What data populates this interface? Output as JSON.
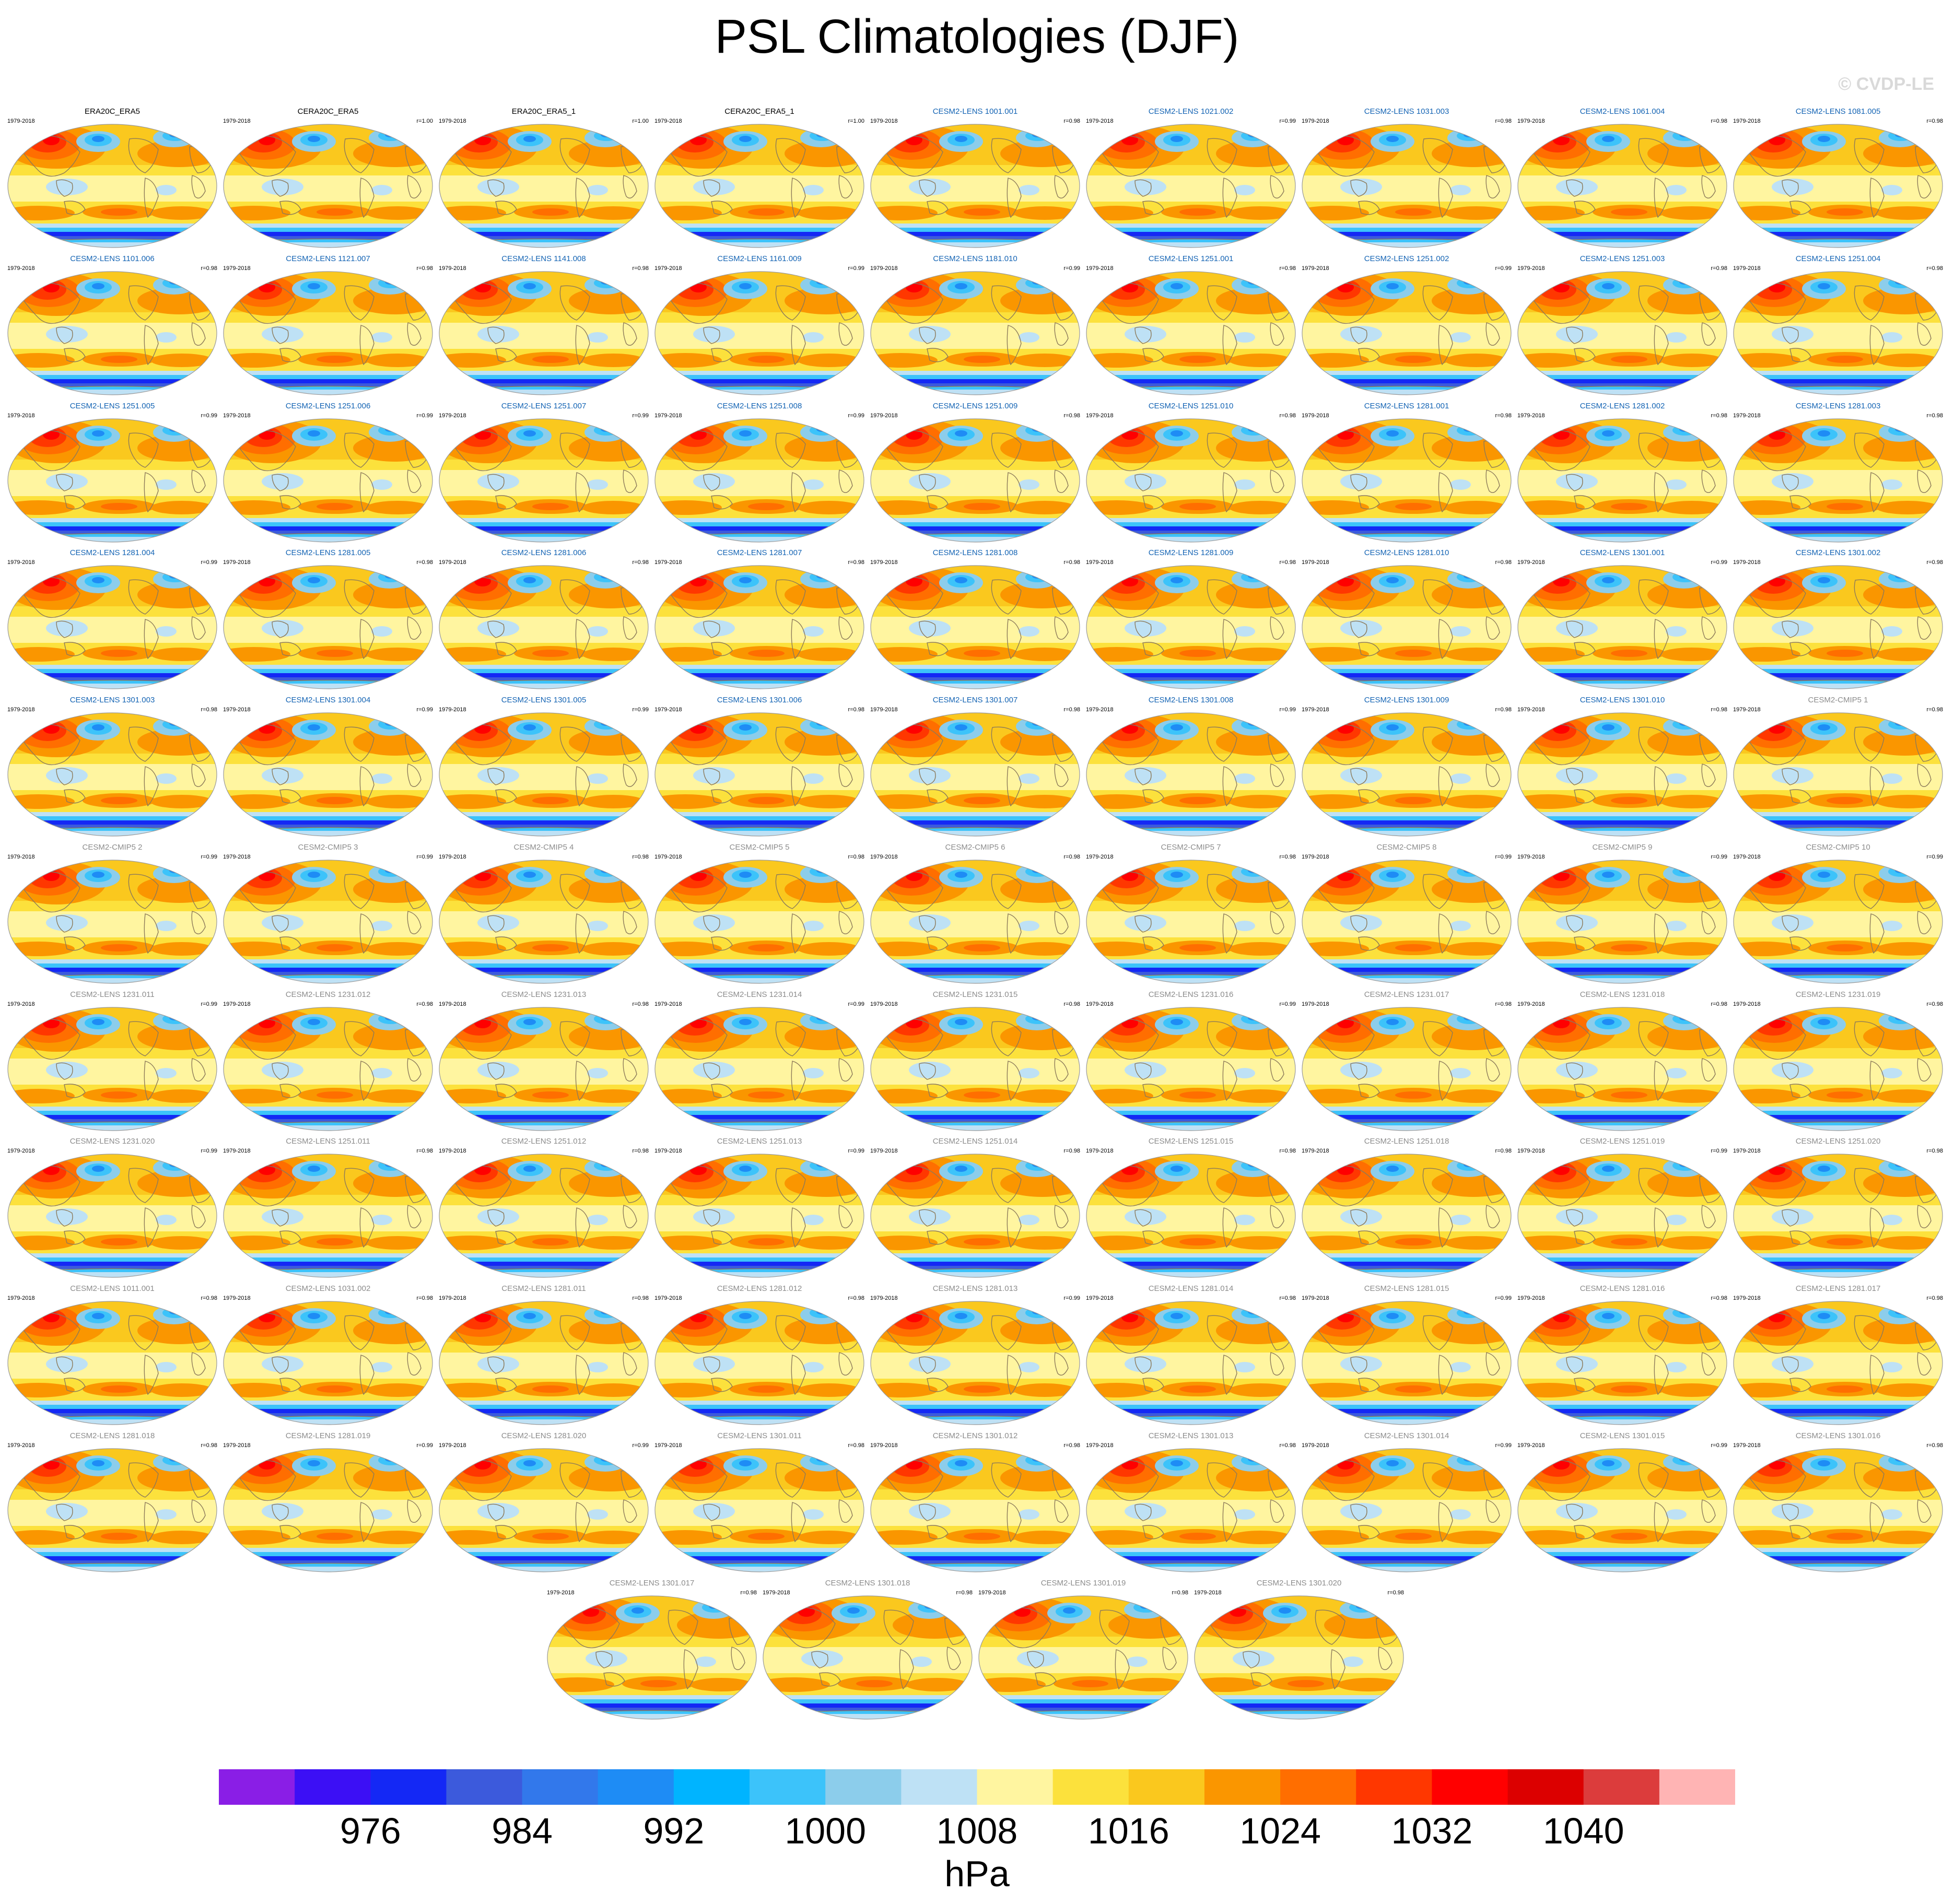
{
  "title": "PSL Climatologies (DJF)",
  "credit": "© CVDP-LE",
  "years": "1979-2018",
  "units": "hPa",
  "colorbar": {
    "tick_labels": [
      "976",
      "984",
      "992",
      "1000",
      "1008",
      "1016",
      "1024",
      "1032",
      "1040"
    ],
    "colors": [
      "#8a1ee6",
      "#3c0ff5",
      "#1428f5",
      "#3c5adc",
      "#3278eb",
      "#1e8cf5",
      "#00b4ff",
      "#3cc3fa",
      "#8ccdeb",
      "#bee1f5",
      "#fff5a0",
      "#fce13c",
      "#fac81e",
      "#fa9600",
      "#ff6e00",
      "#ff3700",
      "#ff0000",
      "#dc0000",
      "#dc3c3c",
      "#ffb4b4"
    ]
  },
  "panels": [
    {
      "name": "ERA20C_ERA5",
      "r": "",
      "kind": "obs"
    },
    {
      "name": "CERA20C_ERA5",
      "r": "r=1.00",
      "kind": "obs"
    },
    {
      "name": "ERA20C_ERA5_1",
      "r": "r=1.00",
      "kind": "obs"
    },
    {
      "name": "CERA20C_ERA5_1",
      "r": "r=1.00",
      "kind": "obs"
    },
    {
      "name": "CESM2-LENS 1001.001",
      "r": "r=0.98",
      "kind": "lens"
    },
    {
      "name": "CESM2-LENS 1021.002",
      "r": "r=0.99",
      "kind": "lens"
    },
    {
      "name": "CESM2-LENS 1031.003",
      "r": "r=0.98",
      "kind": "lens"
    },
    {
      "name": "CESM2-LENS 1061.004",
      "r": "r=0.98",
      "kind": "lens"
    },
    {
      "name": "CESM2-LENS 1081.005",
      "r": "r=0.98",
      "kind": "lens"
    },
    {
      "name": "CESM2-LENS 1101.006",
      "r": "r=0.98",
      "kind": "lens"
    },
    {
      "name": "CESM2-LENS 1121.007",
      "r": "r=0.98",
      "kind": "lens"
    },
    {
      "name": "CESM2-LENS 1141.008",
      "r": "r=0.98",
      "kind": "lens"
    },
    {
      "name": "CESM2-LENS 1161.009",
      "r": "r=0.99",
      "kind": "lens"
    },
    {
      "name": "CESM2-LENS 1181.010",
      "r": "r=0.99",
      "kind": "lens"
    },
    {
      "name": "CESM2-LENS 1251.001",
      "r": "r=0.98",
      "kind": "lens"
    },
    {
      "name": "CESM2-LENS 1251.002",
      "r": "r=0.99",
      "kind": "lens"
    },
    {
      "name": "CESM2-LENS 1251.003",
      "r": "r=0.98",
      "kind": "lens"
    },
    {
      "name": "CESM2-LENS 1251.004",
      "r": "r=0.98",
      "kind": "lens"
    },
    {
      "name": "CESM2-LENS 1251.005",
      "r": "r=0.99",
      "kind": "lens"
    },
    {
      "name": "CESM2-LENS 1251.006",
      "r": "r=0.99",
      "kind": "lens"
    },
    {
      "name": "CESM2-LENS 1251.007",
      "r": "r=0.99",
      "kind": "lens"
    },
    {
      "name": "CESM2-LENS 1251.008",
      "r": "r=0.99",
      "kind": "lens"
    },
    {
      "name": "CESM2-LENS 1251.009",
      "r": "r=0.98",
      "kind": "lens"
    },
    {
      "name": "CESM2-LENS 1251.010",
      "r": "r=0.98",
      "kind": "lens"
    },
    {
      "name": "CESM2-LENS 1281.001",
      "r": "r=0.98",
      "kind": "lens"
    },
    {
      "name": "CESM2-LENS 1281.002",
      "r": "r=0.98",
      "kind": "lens"
    },
    {
      "name": "CESM2-LENS 1281.003",
      "r": "r=0.98",
      "kind": "lens"
    },
    {
      "name": "CESM2-LENS 1281.004",
      "r": "r=0.99",
      "kind": "lens"
    },
    {
      "name": "CESM2-LENS 1281.005",
      "r": "r=0.98",
      "kind": "lens"
    },
    {
      "name": "CESM2-LENS 1281.006",
      "r": "r=0.98",
      "kind": "lens"
    },
    {
      "name": "CESM2-LENS 1281.007",
      "r": "r=0.98",
      "kind": "lens"
    },
    {
      "name": "CESM2-LENS 1281.008",
      "r": "r=0.98",
      "kind": "lens"
    },
    {
      "name": "CESM2-LENS 1281.009",
      "r": "r=0.98",
      "kind": "lens"
    },
    {
      "name": "CESM2-LENS 1281.010",
      "r": "r=0.98",
      "kind": "lens"
    },
    {
      "name": "CESM2-LENS 1301.001",
      "r": "r=0.99",
      "kind": "lens"
    },
    {
      "name": "CESM2-LENS 1301.002",
      "r": "r=0.98",
      "kind": "lens"
    },
    {
      "name": "CESM2-LENS 1301.003",
      "r": "r=0.98",
      "kind": "lens"
    },
    {
      "name": "CESM2-LENS 1301.004",
      "r": "r=0.99",
      "kind": "lens"
    },
    {
      "name": "CESM2-LENS 1301.005",
      "r": "r=0.99",
      "kind": "lens"
    },
    {
      "name": "CESM2-LENS 1301.006",
      "r": "r=0.98",
      "kind": "lens"
    },
    {
      "name": "CESM2-LENS 1301.007",
      "r": "r=0.98",
      "kind": "lens"
    },
    {
      "name": "CESM2-LENS 1301.008",
      "r": "r=0.99",
      "kind": "lens"
    },
    {
      "name": "CESM2-LENS 1301.009",
      "r": "r=0.98",
      "kind": "lens"
    },
    {
      "name": "CESM2-LENS 1301.010",
      "r": "r=0.98",
      "kind": "lens"
    },
    {
      "name": "CESM2-CMIP5 1",
      "r": "r=0.98",
      "kind": "cmip"
    },
    {
      "name": "CESM2-CMIP5 2",
      "r": "r=0.99",
      "kind": "cmip"
    },
    {
      "name": "CESM2-CMIP5 3",
      "r": "r=0.99",
      "kind": "cmip"
    },
    {
      "name": "CESM2-CMIP5 4",
      "r": "r=0.98",
      "kind": "cmip"
    },
    {
      "name": "CESM2-CMIP5 5",
      "r": "r=0.98",
      "kind": "cmip"
    },
    {
      "name": "CESM2-CMIP5 6",
      "r": "r=0.98",
      "kind": "cmip"
    },
    {
      "name": "CESM2-CMIP5 7",
      "r": "r=0.98",
      "kind": "cmip"
    },
    {
      "name": "CESM2-CMIP5 8",
      "r": "r=0.99",
      "kind": "cmip"
    },
    {
      "name": "CESM2-CMIP5 9",
      "r": "r=0.99",
      "kind": "cmip"
    },
    {
      "name": "CESM2-CMIP5 10",
      "r": "r=0.99",
      "kind": "cmip"
    },
    {
      "name": "CESM2-LENS 1231.011",
      "r": "r=0.99",
      "kind": "cmip"
    },
    {
      "name": "CESM2-LENS 1231.012",
      "r": "r=0.98",
      "kind": "cmip"
    },
    {
      "name": "CESM2-LENS 1231.013",
      "r": "r=0.98",
      "kind": "cmip"
    },
    {
      "name": "CESM2-LENS 1231.014",
      "r": "r=0.99",
      "kind": "cmip"
    },
    {
      "name": "CESM2-LENS 1231.015",
      "r": "r=0.98",
      "kind": "cmip"
    },
    {
      "name": "CESM2-LENS 1231.016",
      "r": "r=0.99",
      "kind": "cmip"
    },
    {
      "name": "CESM2-LENS 1231.017",
      "r": "r=0.98",
      "kind": "cmip"
    },
    {
      "name": "CESM2-LENS 1231.018",
      "r": "r=0.98",
      "kind": "cmip"
    },
    {
      "name": "CESM2-LENS 1231.019",
      "r": "r=0.98",
      "kind": "cmip"
    },
    {
      "name": "CESM2-LENS 1231.020",
      "r": "r=0.99",
      "kind": "cmip"
    },
    {
      "name": "CESM2-LENS 1251.011",
      "r": "r=0.98",
      "kind": "cmip"
    },
    {
      "name": "CESM2-LENS 1251.012",
      "r": "r=0.98",
      "kind": "cmip"
    },
    {
      "name": "CESM2-LENS 1251.013",
      "r": "r=0.99",
      "kind": "cmip"
    },
    {
      "name": "CESM2-LENS 1251.014",
      "r": "r=0.98",
      "kind": "cmip"
    },
    {
      "name": "CESM2-LENS 1251.015",
      "r": "r=0.98",
      "kind": "cmip"
    },
    {
      "name": "CESM2-LENS 1251.018",
      "r": "r=0.98",
      "kind": "cmip"
    },
    {
      "name": "CESM2-LENS 1251.019",
      "r": "r=0.99",
      "kind": "cmip"
    },
    {
      "name": "CESM2-LENS 1251.020",
      "r": "r=0.98",
      "kind": "cmip"
    },
    {
      "name": "CESM2-LENS 1011.001",
      "r": "r=0.98",
      "kind": "cmip"
    },
    {
      "name": "CESM2-LENS 1031.002",
      "r": "r=0.98",
      "kind": "cmip"
    },
    {
      "name": "CESM2-LENS 1281.011",
      "r": "r=0.98",
      "kind": "cmip"
    },
    {
      "name": "CESM2-LENS 1281.012",
      "r": "r=0.98",
      "kind": "cmip"
    },
    {
      "name": "CESM2-LENS 1281.013",
      "r": "r=0.99",
      "kind": "cmip"
    },
    {
      "name": "CESM2-LENS 1281.014",
      "r": "r=0.98",
      "kind": "cmip"
    },
    {
      "name": "CESM2-LENS 1281.015",
      "r": "r=0.99",
      "kind": "cmip"
    },
    {
      "name": "CESM2-LENS 1281.016",
      "r": "r=0.98",
      "kind": "cmip"
    },
    {
      "name": "CESM2-LENS 1281.017",
      "r": "r=0.98",
      "kind": "cmip"
    },
    {
      "name": "CESM2-LENS 1281.018",
      "r": "r=0.98",
      "kind": "cmip"
    },
    {
      "name": "CESM2-LENS 1281.019",
      "r": "r=0.99",
      "kind": "cmip"
    },
    {
      "name": "CESM2-LENS 1281.020",
      "r": "r=0.99",
      "kind": "cmip"
    },
    {
      "name": "CESM2-LENS 1301.011",
      "r": "r=0.98",
      "kind": "cmip"
    },
    {
      "name": "CESM2-LENS 1301.012",
      "r": "r=0.98",
      "kind": "cmip"
    },
    {
      "name": "CESM2-LENS 1301.013",
      "r": "r=0.98",
      "kind": "cmip"
    },
    {
      "name": "CESM2-LENS 1301.014",
      "r": "r=0.99",
      "kind": "cmip"
    },
    {
      "name": "CESM2-LENS 1301.015",
      "r": "r=0.99",
      "kind": "cmip"
    },
    {
      "name": "CESM2-LENS 1301.016",
      "r": "r=0.98",
      "kind": "cmip"
    },
    {
      "name": "CESM2-LENS 1301.017",
      "r": "r=0.98",
      "kind": "cmip"
    },
    {
      "name": "CESM2-LENS 1301.018",
      "r": "r=0.98",
      "kind": "cmip"
    },
    {
      "name": "CESM2-LENS 1301.019",
      "r": "r=0.98",
      "kind": "cmip"
    },
    {
      "name": "CESM2-LENS 1301.020",
      "r": "r=0.98",
      "kind": "cmip"
    }
  ],
  "style": {
    "title_colors": {
      "obs": "#000000",
      "lens": "#1464b4",
      "cmip": "#8c8c8c"
    },
    "land_outline": "#8c7a5a"
  }
}
